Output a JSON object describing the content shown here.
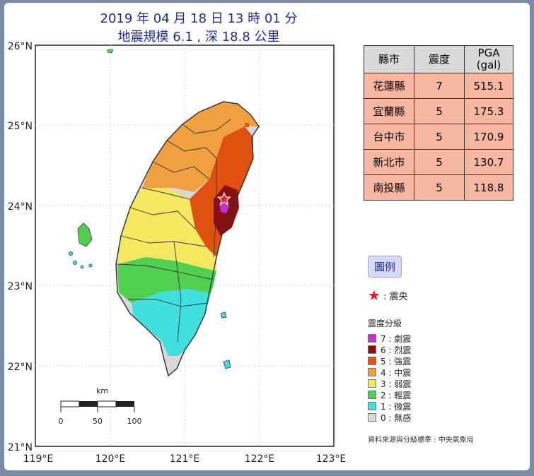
{
  "title": {
    "line1": "2019 年 04 月 18 日 13 時 01 分",
    "line2": "地震規模 6.1 , 深 18.8 公里"
  },
  "axes": {
    "lat_labels": [
      "26°N",
      "25°N",
      "24°N",
      "23°N",
      "22°N",
      "21°N"
    ],
    "lon_labels": [
      "119°E",
      "120°E",
      "121°E",
      "122°E",
      "123°E"
    ]
  },
  "scalebar": {
    "unit": "km",
    "labels": [
      "0",
      "50",
      "100"
    ]
  },
  "table": {
    "headers": [
      "縣市",
      "震度",
      "PGA (gal)"
    ],
    "rows": [
      {
        "county": "花蓮縣",
        "intensity": "7",
        "pga": "515.1"
      },
      {
        "county": "宜蘭縣",
        "intensity": "5",
        "pga": "175.3"
      },
      {
        "county": "台中市",
        "intensity": "5",
        "pga": "170.9"
      },
      {
        "county": "新北市",
        "intensity": "5",
        "pga": "130.7"
      },
      {
        "county": "南投縣",
        "intensity": "5",
        "pga": "118.8"
      }
    ]
  },
  "legend": {
    "title": "圖例",
    "epicenter_label": ": 震央",
    "scale_title": "震度分級",
    "levels": [
      {
        "label": "7 : 劇震",
        "color": "#c030d0"
      },
      {
        "label": "6 : 烈震",
        "color": "#8a1010"
      },
      {
        "label": "5 : 強震",
        "color": "#e05010"
      },
      {
        "label": "4 : 中震",
        "color": "#f0a040"
      },
      {
        "label": "3 : 弱震",
        "color": "#f4e860"
      },
      {
        "label": "2 : 輕震",
        "color": "#50d050"
      },
      {
        "label": "1 : 微震",
        "color": "#40e0e0"
      },
      {
        "label": "0 : 無感",
        "color": "#d8d8d8"
      }
    ],
    "source": "資料來源與分級標準 : 中央氣象局"
  },
  "epicenter": {
    "lon": 121.53,
    "lat": 24.08
  }
}
